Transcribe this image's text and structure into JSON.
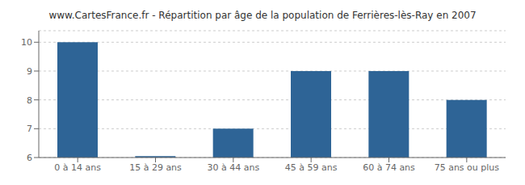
{
  "chart_data": {
    "type": "bar",
    "title": "www.CartesFrance.fr - Répartition par âge de la population de Ferrières-lès-Ray en 2007",
    "categories": [
      "0 à 14 ans",
      "15 à 29 ans",
      "30 à 44 ans",
      "45 à 59 ans",
      "60 à 74 ans",
      "75 ans ou plus"
    ],
    "values": [
      10,
      6.05,
      7,
      9,
      9,
      8
    ],
    "color": "#2e6496",
    "ylim": [
      6,
      10.4
    ],
    "yticks": [
      6,
      7,
      8,
      9,
      10
    ],
    "grid": true
  }
}
